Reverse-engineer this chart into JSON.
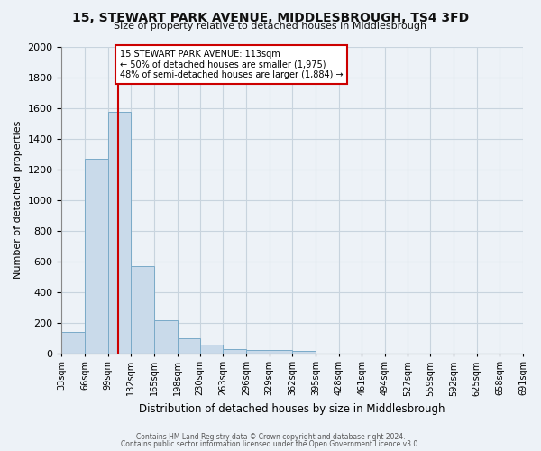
{
  "title": "15, STEWART PARK AVENUE, MIDDLESBROUGH, TS4 3FD",
  "subtitle": "Size of property relative to detached houses in Middlesbrough",
  "xlabel": "Distribution of detached houses by size in Middlesbrough",
  "ylabel": "Number of detached properties",
  "bin_edges": [
    33,
    66,
    99,
    132,
    165,
    198,
    230,
    263,
    296,
    329,
    362,
    395,
    428,
    461,
    494,
    527,
    559,
    592,
    625,
    658,
    691
  ],
  "bar_heights": [
    140,
    1265,
    1575,
    565,
    215,
    95,
    55,
    25,
    20,
    20,
    15,
    0,
    0,
    0,
    0,
    0,
    0,
    0,
    0,
    0
  ],
  "bar_color": "#c9daea",
  "bar_edge_color": "#7aaac8",
  "property_size": 113,
  "vline_color": "#cc0000",
  "annotation_line1": "15 STEWART PARK AVENUE: 113sqm",
  "annotation_line2": "← 50% of detached houses are smaller (1,975)",
  "annotation_line3": "48% of semi-detached houses are larger (1,884) →",
  "annotation_box_color": "#ffffff",
  "annotation_box_edge_color": "#cc0000",
  "ylim": [
    0,
    2000
  ],
  "yticks": [
    0,
    200,
    400,
    600,
    800,
    1000,
    1200,
    1400,
    1600,
    1800,
    2000
  ],
  "footer1": "Contains HM Land Registry data © Crown copyright and database right 2024.",
  "footer2": "Contains public sector information licensed under the Open Government Licence v3.0.",
  "grid_color": "#c8d4de",
  "background_color": "#edf2f7",
  "plot_bg_color": "#edf2f7",
  "title_fontsize": 10,
  "subtitle_fontsize": 8,
  "tick_fontsize": 7,
  "ylabel_fontsize": 8,
  "xlabel_fontsize": 8.5
}
